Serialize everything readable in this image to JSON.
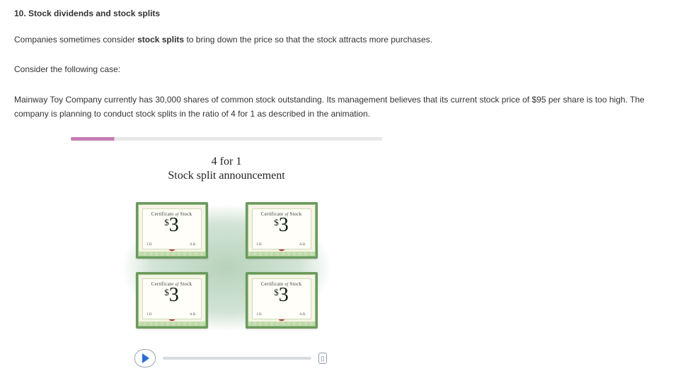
{
  "heading_number": "10.",
  "heading_text": "Stock dividends and stock splits",
  "para1_pre": "Companies sometimes consider ",
  "para1_bold": "stock splits",
  "para1_post": " to bring down the price so that the stock attracts more purchases.",
  "para2": "Consider the following case:",
  "para3": "Mainway Toy Company currently has 30,000 shares of common stock outstanding. Its management believes that its current stock price of $95 per share is too high. The company is planning to conduct stock splits in the ratio of 4 for 1 as described in the animation.",
  "anim_title_line1": "4 for 1",
  "anim_title_line2": "Stock split announcement",
  "cert_header_cert": "Certificate",
  "cert_header_of": "of",
  "cert_header_stock": "Stock",
  "cert_dollar": "$",
  "cert_value": "3",
  "cert_sig_left": "J.D.",
  "cert_sig_right": "A.B.",
  "slider_end_glyph": "▯",
  "colors": {
    "progress_fill": "#c47bb2",
    "cert_border": "#6a9a5d",
    "cert_bg": "#f6f4e6",
    "halo": "#afceb4",
    "play_arrow": "#2a6ed6"
  }
}
